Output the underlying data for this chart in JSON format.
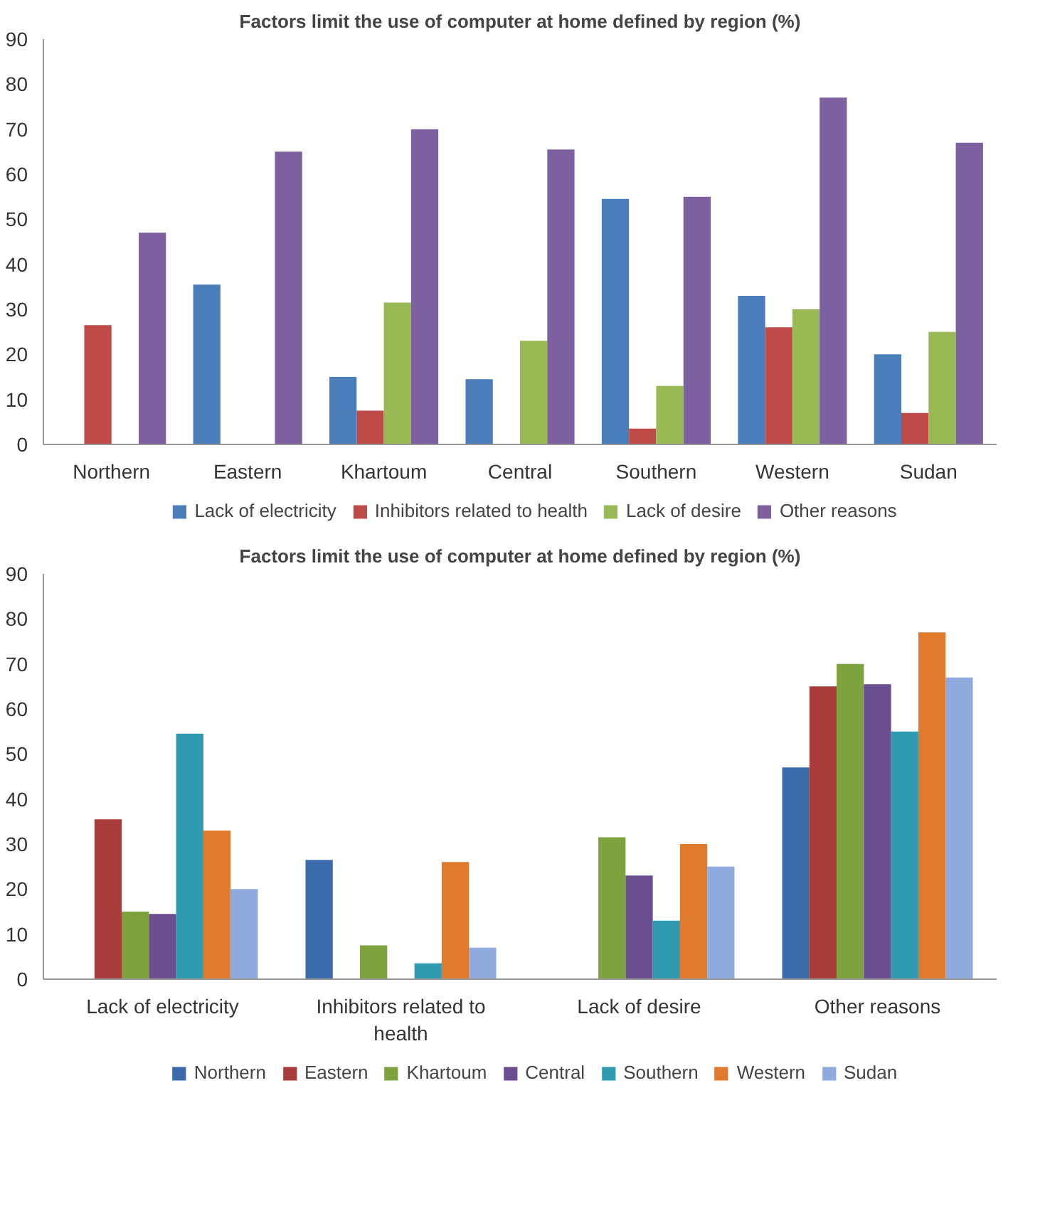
{
  "chart_data": [
    {
      "type": "bar",
      "title": "Factors limit the use of computer at home defined by region (%)",
      "categories": [
        "Northern",
        "Eastern",
        "Khartoum",
        "Central",
        "Southern",
        "Western",
        "Sudan"
      ],
      "ylim": [
        0,
        90
      ],
      "yticks": [
        0,
        10,
        20,
        30,
        40,
        50,
        60,
        70,
        80,
        90
      ],
      "grid": false,
      "legend": "bottom",
      "series": [
        {
          "name": "Lack of electricity",
          "color": "#4a7ebb",
          "values": [
            0,
            35.5,
            15,
            14.5,
            54.5,
            33,
            20
          ]
        },
        {
          "name": "Inhibitors related to health",
          "color": "#be4b48",
          "values": [
            26.5,
            0,
            7.5,
            0,
            3.5,
            26,
            7
          ]
        },
        {
          "name": "Lack of desire",
          "color": "#98b954",
          "values": [
            0,
            0,
            31.5,
            23,
            13,
            30,
            25
          ]
        },
        {
          "name": "Other reasons",
          "color": "#7d60a0",
          "values": [
            47,
            65,
            70,
            65.5,
            55,
            77,
            67
          ]
        }
      ]
    },
    {
      "type": "bar",
      "title": "Factors limit the use of computer at home defined by region (%)",
      "categories": [
        "Lack of electricity",
        "Inhibitors related to health",
        "Lack of desire",
        "Other reasons"
      ],
      "ylim": [
        0,
        90
      ],
      "yticks": [
        0,
        10,
        20,
        30,
        40,
        50,
        60,
        70,
        80,
        90
      ],
      "grid": false,
      "legend": "bottom",
      "series": [
        {
          "name": "Northern",
          "color": "#3b6aa8",
          "values": [
            0,
            26.5,
            0,
            47
          ]
        },
        {
          "name": "Eastern",
          "color": "#a83c3a",
          "values": [
            35.5,
            0,
            0,
            65
          ]
        },
        {
          "name": "Khartoum",
          "color": "#7ea33e",
          "values": [
            15,
            7.5,
            31.5,
            70
          ]
        },
        {
          "name": "Central",
          "color": "#6a4e8f",
          "values": [
            14.5,
            0,
            23,
            65.5
          ]
        },
        {
          "name": "Southern",
          "color": "#2f9ab0",
          "values": [
            54.5,
            3.5,
            13,
            55
          ]
        },
        {
          "name": "Western",
          "color": "#e07b2e",
          "values": [
            33,
            26,
            30,
            77
          ]
        },
        {
          "name": "Sudan",
          "color": "#8faadc",
          "values": [
            20,
            7,
            25,
            67
          ]
        }
      ]
    }
  ]
}
